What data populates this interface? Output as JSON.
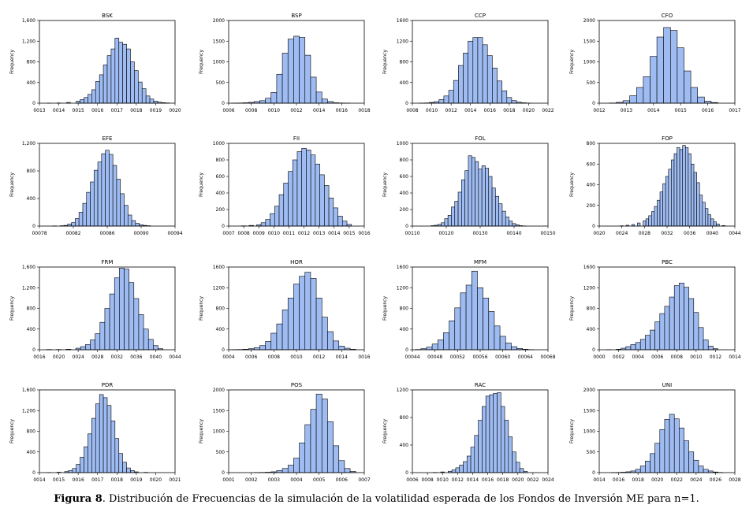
{
  "caption": {
    "label": "Figura 8",
    "text": ". Distribución de Frecuencias de la simulación de la volatilidad esperada de los Fondos de Inversión ME para n=1."
  },
  "colors": {
    "bar_fill": "#9EBBF2",
    "bar_stroke": "#000000",
    "frame": "#000000",
    "text": "#000000"
  },
  "chart_data": [
    {
      "type": "bar",
      "title": "BSK",
      "ylabel": "Frequency",
      "ylim": [
        0,
        1600
      ],
      "yticks": [
        "0",
        "400",
        "800",
        "1,200",
        "1,600"
      ],
      "xticks": [
        "0013",
        "0014",
        "0015",
        "0016",
        "0017",
        "0018",
        "0019",
        "0020"
      ],
      "xlim": [
        0.0013,
        0.002
      ],
      "x": [
        0.00135,
        0.0014,
        0.00145,
        0.0015,
        0.00152,
        0.00154,
        0.00156,
        0.00158,
        0.0016,
        0.00162,
        0.00164,
        0.00166,
        0.00168,
        0.0017,
        0.00172,
        0.00174,
        0.00176,
        0.00178,
        0.0018,
        0.00182,
        0.00184,
        0.00186,
        0.00188,
        0.0019,
        0.00192,
        0.00194,
        0.00196
      ],
      "values": [
        2,
        5,
        15,
        40,
        70,
        110,
        170,
        260,
        420,
        550,
        740,
        920,
        1050,
        1260,
        1180,
        1140,
        1050,
        800,
        630,
        410,
        280,
        140,
        80,
        40,
        20,
        10,
        5
      ]
    },
    {
      "type": "bar",
      "title": "BSP",
      "ylabel": "Frequency",
      "ylim": [
        0,
        2000
      ],
      "yticks": [
        "0",
        "500",
        "1000",
        "1500",
        "2000"
      ],
      "xticks": [
        "0006",
        "0008",
        "0010",
        "0012",
        "0014",
        "0016",
        "0018"
      ],
      "xlim": [
        0.0006,
        0.0018
      ],
      "x": [
        0.00065,
        0.0007,
        0.00075,
        0.0008,
        0.00085,
        0.0009,
        0.00095,
        0.001,
        0.00105,
        0.0011,
        0.00115,
        0.0012,
        0.00125,
        0.0013,
        0.00135,
        0.0014,
        0.00145,
        0.0015,
        0.00155,
        0.0016,
        0.00165
      ],
      "values": [
        2,
        5,
        10,
        20,
        40,
        60,
        120,
        260,
        700,
        1210,
        1550,
        1620,
        1590,
        1160,
        630,
        270,
        100,
        40,
        10,
        5,
        2
      ]
    },
    {
      "type": "bar",
      "title": "CCP",
      "ylabel": "Frequency",
      "ylim": [
        0,
        1600
      ],
      "yticks": [
        "0",
        "400",
        "800",
        "1200",
        "1600"
      ],
      "xticks": [
        "0008",
        "0010",
        "0012",
        "0014",
        "0016",
        "0018",
        "0020",
        "0022"
      ],
      "xlim": [
        0.0008,
        0.0022
      ],
      "x": [
        0.0009,
        0.00095,
        0.001,
        0.00105,
        0.0011,
        0.00115,
        0.0012,
        0.00125,
        0.0013,
        0.00135,
        0.0014,
        0.00145,
        0.0015,
        0.00155,
        0.0016,
        0.00165,
        0.0017,
        0.00175,
        0.0018,
        0.00185,
        0.0019,
        0.00195,
        0.002
      ],
      "values": [
        3,
        5,
        15,
        30,
        70,
        140,
        250,
        440,
        730,
        970,
        1200,
        1270,
        1270,
        1130,
        920,
        680,
        430,
        240,
        110,
        50,
        20,
        8,
        3
      ]
    },
    {
      "type": "bar",
      "title": "CFO",
      "ylabel": "Frequency",
      "ylim": [
        0,
        2000
      ],
      "yticks": [
        "0",
        "500",
        "1000",
        "1500",
        "2000"
      ],
      "xticks": [
        "0012",
        "0013",
        "0014",
        "0015",
        "0016",
        "0017"
      ],
      "xlim": [
        0.0012,
        0.0017
      ],
      "x": [
        0.00125,
        0.001275,
        0.0013,
        0.001325,
        0.00135,
        0.001375,
        0.0014,
        0.001425,
        0.00145,
        0.001475,
        0.0015,
        0.001525,
        0.00155,
        0.001575,
        0.0016,
        0.001625
      ],
      "values": [
        5,
        20,
        60,
        180,
        380,
        640,
        1130,
        1600,
        1830,
        1760,
        1340,
        780,
        380,
        150,
        50,
        15
      ]
    },
    {
      "type": "bar",
      "title": "EFE",
      "ylabel": "Frequency",
      "ylim": [
        0,
        1200
      ],
      "yticks": [
        "0",
        "400",
        "800",
        "1,200"
      ],
      "xticks": [
        "00078",
        "00082",
        "00086",
        "00090",
        "00094"
      ],
      "xlim": [
        0.00078,
        0.00096
      ],
      "x": [
        0.0008,
        0.00081,
        0.000815,
        0.00082,
        0.000825,
        0.00083,
        0.000835,
        0.00084,
        0.000845,
        0.00085,
        0.000855,
        0.00086,
        0.000865,
        0.00087,
        0.000875,
        0.00088,
        0.000885,
        0.00089,
        0.000895,
        0.0009,
        0.000905,
        0.00091,
        0.000915,
        0.00092,
        0.000925
      ],
      "values": [
        3,
        5,
        10,
        30,
        50,
        110,
        200,
        330,
        490,
        640,
        810,
        930,
        1050,
        1100,
        1040,
        880,
        680,
        470,
        300,
        160,
        80,
        40,
        20,
        10,
        5
      ]
    },
    {
      "type": "bar",
      "title": "FII",
      "ylabel": "Frequency",
      "ylim": [
        0,
        1000
      ],
      "yticks": [
        "0",
        "200",
        "400",
        "600",
        "800",
        "1000"
      ],
      "xticks": [
        "0007",
        "0008",
        "0009",
        "0010",
        "0011",
        "0012",
        "0013",
        "0014",
        "0015",
        "0016"
      ],
      "xlim": [
        0.0007,
        0.0016
      ],
      "x": [
        0.0008,
        0.00085,
        0.0009,
        0.00093,
        0.00096,
        0.00099,
        0.00102,
        0.00105,
        0.00108,
        0.00111,
        0.00114,
        0.00117,
        0.0012,
        0.00123,
        0.00126,
        0.00129,
        0.00132,
        0.00135,
        0.00138,
        0.00141,
        0.00144,
        0.00147,
        0.0015
      ],
      "values": [
        3,
        8,
        15,
        40,
        80,
        150,
        240,
        380,
        520,
        660,
        800,
        900,
        940,
        920,
        860,
        750,
        620,
        490,
        340,
        220,
        120,
        60,
        20
      ]
    },
    {
      "type": "bar",
      "title": "FOL",
      "ylabel": "Frequency",
      "ylim": [
        0,
        1000
      ],
      "yticks": [
        "0",
        "200",
        "400",
        "600",
        "800",
        "1000"
      ],
      "xticks": [
        "00110",
        "00120",
        "00130",
        "00140",
        "00150"
      ],
      "xlim": [
        0.0011,
        0.0015
      ],
      "x": [
        0.00116,
        0.00117,
        0.00118,
        0.00119,
        0.0012,
        0.00121,
        0.00122,
        0.00123,
        0.00124,
        0.00125,
        0.00126,
        0.00127,
        0.00128,
        0.00129,
        0.0013,
        0.00131,
        0.00132,
        0.00133,
        0.00134,
        0.00135,
        0.00136,
        0.00137,
        0.00138,
        0.00139,
        0.0014,
        0.00141,
        0.00142,
        0.00143
      ],
      "values": [
        5,
        10,
        20,
        40,
        90,
        130,
        230,
        300,
        410,
        560,
        670,
        850,
        830,
        780,
        690,
        730,
        700,
        600,
        460,
        360,
        270,
        180,
        110,
        60,
        30,
        15,
        5,
        2
      ]
    },
    {
      "type": "bar",
      "title": "FOP",
      "ylabel": "Frequency",
      "ylim": [
        0,
        800
      ],
      "yticks": [
        "0",
        "200",
        "400",
        "600",
        "800"
      ],
      "xticks": [
        "0020",
        "0024",
        "0028",
        "0032",
        "0036",
        "0040",
        "0044"
      ],
      "xlim": [
        0.002,
        0.0044
      ],
      "x": [
        0.0024,
        0.0025,
        0.0026,
        0.0027,
        0.0028,
        0.00285,
        0.0029,
        0.00295,
        0.003,
        0.00305,
        0.0031,
        0.00315,
        0.0032,
        0.00325,
        0.0033,
        0.00335,
        0.0034,
        0.00345,
        0.0035,
        0.00355,
        0.0036,
        0.00365,
        0.0037,
        0.00375,
        0.0038,
        0.00385,
        0.0039,
        0.00395,
        0.004,
        0.00405,
        0.0041,
        0.0042
      ],
      "values": [
        3,
        8,
        15,
        30,
        50,
        70,
        100,
        140,
        190,
        250,
        330,
        410,
        480,
        550,
        640,
        700,
        760,
        740,
        780,
        760,
        700,
        600,
        520,
        420,
        300,
        230,
        170,
        110,
        70,
        40,
        20,
        5
      ]
    },
    {
      "type": "bar",
      "title": "FRM",
      "ylabel": "Frequency",
      "ylim": [
        0,
        1600
      ],
      "yticks": [
        "0",
        "400",
        "800",
        "1,200",
        "1,600"
      ],
      "xticks": [
        "0016",
        "0020",
        "0024",
        "0028",
        "0032",
        "0036",
        "0040",
        "0044"
      ],
      "xlim": [
        0.0016,
        0.0044
      ],
      "x": [
        0.0018,
        0.002,
        0.0022,
        0.0024,
        0.0025,
        0.0026,
        0.0027,
        0.0028,
        0.0029,
        0.003,
        0.0031,
        0.0032,
        0.0033,
        0.0034,
        0.0035,
        0.0036,
        0.0037,
        0.0038,
        0.0039,
        0.004,
        0.0041
      ],
      "values": [
        5,
        5,
        10,
        30,
        60,
        100,
        190,
        310,
        530,
        800,
        1080,
        1390,
        1580,
        1560,
        1300,
        990,
        680,
        400,
        200,
        80,
        20
      ]
    },
    {
      "type": "bar",
      "title": "HOR",
      "ylabel": "Frequency",
      "ylim": [
        0,
        1600
      ],
      "yticks": [
        "0",
        "400",
        "800",
        "1200",
        "1600"
      ],
      "xticks": [
        "0004",
        "0006",
        "0008",
        "0010",
        "0012",
        "0014",
        "0016"
      ],
      "xlim": [
        0.0004,
        0.0016
      ],
      "x": [
        0.00045,
        0.0005,
        0.00055,
        0.0006,
        0.00065,
        0.0007,
        0.00075,
        0.0008,
        0.00085,
        0.0009,
        0.00095,
        0.001,
        0.00105,
        0.0011,
        0.00115,
        0.0012,
        0.00125,
        0.0013,
        0.00135,
        0.0014,
        0.00145,
        0.0015
      ],
      "values": [
        3,
        5,
        10,
        20,
        40,
        80,
        160,
        320,
        500,
        770,
        1000,
        1270,
        1420,
        1500,
        1380,
        1000,
        630,
        350,
        170,
        70,
        30,
        10
      ]
    },
    {
      "type": "bar",
      "title": "MFM",
      "ylabel": "Frequency",
      "ylim": [
        0,
        1600
      ],
      "yticks": [
        "0",
        "400",
        "800",
        "1200",
        "1600"
      ],
      "xticks": [
        "00044",
        "00048",
        "00052",
        "00056",
        "00060",
        "00064",
        "00068"
      ],
      "xlim": [
        0.00044,
        0.00068
      ],
      "x": [
        0.00045,
        0.00046,
        0.00047,
        0.00048,
        0.00049,
        0.0005,
        0.00051,
        0.00052,
        0.00053,
        0.00054,
        0.00055,
        0.00056,
        0.00057,
        0.00058,
        0.00059,
        0.0006,
        0.00061,
        0.00062,
        0.00063,
        0.00064,
        0.00065
      ],
      "values": [
        5,
        20,
        50,
        110,
        190,
        330,
        560,
        810,
        1100,
        1250,
        1520,
        1200,
        1000,
        740,
        460,
        260,
        130,
        60,
        25,
        10,
        3
      ]
    },
    {
      "type": "bar",
      "title": "PBC",
      "ylabel": "Frequency",
      "ylim": [
        0,
        1600
      ],
      "yticks": [
        "0",
        "400",
        "800",
        "1200",
        "1600"
      ],
      "xticks": [
        "0000",
        "0002",
        "0004",
        "0006",
        "0008",
        "0010",
        "0012",
        "0014"
      ],
      "xlim": [
        0.0,
        0.0014
      ],
      "x": [
        0.0001,
        0.0002,
        0.00025,
        0.0003,
        0.00035,
        0.0004,
        0.00045,
        0.0005,
        0.00055,
        0.0006,
        0.00065,
        0.0007,
        0.00075,
        0.0008,
        0.00085,
        0.0009,
        0.00095,
        0.001,
        0.00105,
        0.0011,
        0.00115,
        0.0012
      ],
      "values": [
        3,
        10,
        30,
        60,
        100,
        140,
        200,
        280,
        380,
        540,
        700,
        840,
        1020,
        1240,
        1290,
        1210,
        990,
        720,
        430,
        190,
        70,
        20
      ]
    },
    {
      "type": "bar",
      "title": "PDR",
      "ylabel": "Frequency",
      "ylim": [
        0,
        1600
      ],
      "yticks": [
        "0",
        "400",
        "800",
        "1,200",
        "1,600"
      ],
      "xticks": [
        "0014",
        "0015",
        "0016",
        "0017",
        "0018",
        "0019",
        "0020",
        "0021"
      ],
      "xlim": [
        0.0014,
        0.0021
      ],
      "x": [
        0.00145,
        0.0015,
        0.00154,
        0.00156,
        0.00158,
        0.0016,
        0.00162,
        0.00164,
        0.00166,
        0.00168,
        0.0017,
        0.00172,
        0.00174,
        0.00176,
        0.00178,
        0.0018,
        0.00182,
        0.00184,
        0.00186,
        0.00188,
        0.0019,
        0.00195
      ],
      "values": [
        3,
        8,
        20,
        40,
        80,
        160,
        300,
        500,
        750,
        1050,
        1330,
        1510,
        1450,
        1300,
        1000,
        660,
        370,
        200,
        90,
        40,
        15,
        5
      ]
    },
    {
      "type": "bar",
      "title": "POS",
      "ylabel": "Frequency",
      "ylim": [
        0,
        2000
      ],
      "yticks": [
        "0",
        "500",
        "1000",
        "1500",
        "2000"
      ],
      "xticks": [
        "0001",
        "0002",
        "0003",
        "0004",
        "0005",
        "0006",
        "0007"
      ],
      "xlim": [
        0.0001,
        0.0007
      ],
      "x": [
        0.000225,
        0.00025,
        0.000275,
        0.0003,
        0.000325,
        0.00035,
        0.000375,
        0.0004,
        0.000425,
        0.00045,
        0.000475,
        0.0005,
        0.000525,
        0.00055,
        0.000575,
        0.0006,
        0.000625,
        0.00065
      ],
      "values": [
        3,
        5,
        10,
        20,
        50,
        100,
        180,
        350,
        720,
        1160,
        1530,
        1900,
        1780,
        1230,
        650,
        290,
        100,
        30
      ]
    },
    {
      "type": "bar",
      "title": "RAC",
      "ylabel": "Frequency",
      "ylim": [
        0,
        1200
      ],
      "yticks": [
        "0",
        "400",
        "800",
        "1200"
      ],
      "xticks": [
        "0006",
        "0008",
        "0010",
        "0012",
        "0014",
        "0016",
        "0018",
        "0020",
        "0022",
        "0024"
      ],
      "xlim": [
        0.0006,
        0.0024
      ],
      "x": [
        0.0009,
        0.001,
        0.0011,
        0.00115,
        0.0012,
        0.00125,
        0.0013,
        0.00135,
        0.0014,
        0.00145,
        0.0015,
        0.00155,
        0.0016,
        0.00165,
        0.0017,
        0.00175,
        0.0018,
        0.00185,
        0.0019,
        0.00195,
        0.002,
        0.00205,
        0.0021
      ],
      "values": [
        3,
        10,
        20,
        40,
        70,
        110,
        160,
        240,
        370,
        540,
        760,
        960,
        1110,
        1130,
        1150,
        1160,
        960,
        760,
        520,
        300,
        150,
        60,
        20
      ]
    },
    {
      "type": "bar",
      "title": "UNI",
      "ylabel": "Frequency",
      "ylim": [
        0,
        2000
      ],
      "yticks": [
        "0",
        "500",
        "1000",
        "1500",
        "2000"
      ],
      "xticks": [
        "0014",
        "0016",
        "0018",
        "0020",
        "0022",
        "0024",
        "0026",
        "0028"
      ],
      "xlim": [
        0.0014,
        0.0028
      ],
      "x": [
        0.00155,
        0.0016,
        0.00165,
        0.0017,
        0.00175,
        0.0018,
        0.00185,
        0.0019,
        0.00195,
        0.002,
        0.00205,
        0.0021,
        0.00215,
        0.0022,
        0.00225,
        0.0023,
        0.00235,
        0.0024,
        0.00245,
        0.0025,
        0.00255,
        0.0026,
        0.00265
      ],
      "values": [
        3,
        5,
        10,
        20,
        40,
        80,
        160,
        280,
        460,
        710,
        1040,
        1290,
        1410,
        1300,
        1080,
        770,
        500,
        300,
        160,
        80,
        40,
        15,
        5
      ]
    }
  ]
}
